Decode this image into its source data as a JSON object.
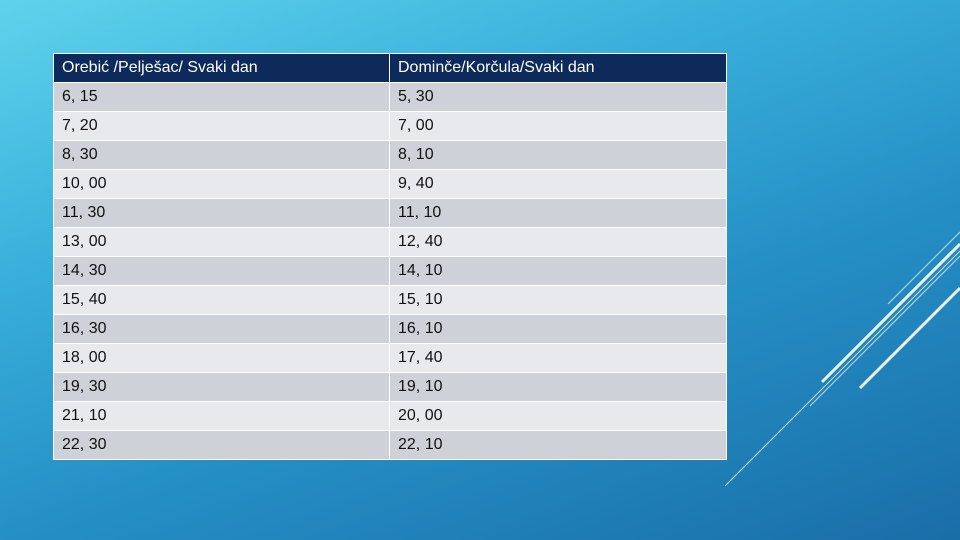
{
  "table": {
    "headers": [
      "Orebić /Pelješac/ Svaki dan",
      "Dominče/Korčula/Svaki dan"
    ],
    "rows": [
      [
        "6, 15",
        "5, 30"
      ],
      [
        "7, 20",
        "7, 00"
      ],
      [
        "8, 30",
        "8, 10"
      ],
      [
        "10, 00",
        "9, 40"
      ],
      [
        "11, 30",
        "11, 10"
      ],
      [
        "13, 00",
        "12, 40"
      ],
      [
        "14, 30",
        "14, 10"
      ],
      [
        "15, 40",
        "15, 10"
      ],
      [
        "16, 30",
        "16, 10"
      ],
      [
        "18, 00",
        "17, 40"
      ],
      [
        "19, 30",
        "19, 10"
      ],
      [
        "21, 10",
        "20, 00"
      ],
      [
        "22, 30",
        "22, 10"
      ]
    ]
  },
  "colors": {
    "header_bg": "#0e2a5b",
    "row_odd": "#cfd1d8",
    "row_even": "#e8e9ec",
    "background_top": "#5fd3ec",
    "background_bottom": "#1a6ea8"
  }
}
